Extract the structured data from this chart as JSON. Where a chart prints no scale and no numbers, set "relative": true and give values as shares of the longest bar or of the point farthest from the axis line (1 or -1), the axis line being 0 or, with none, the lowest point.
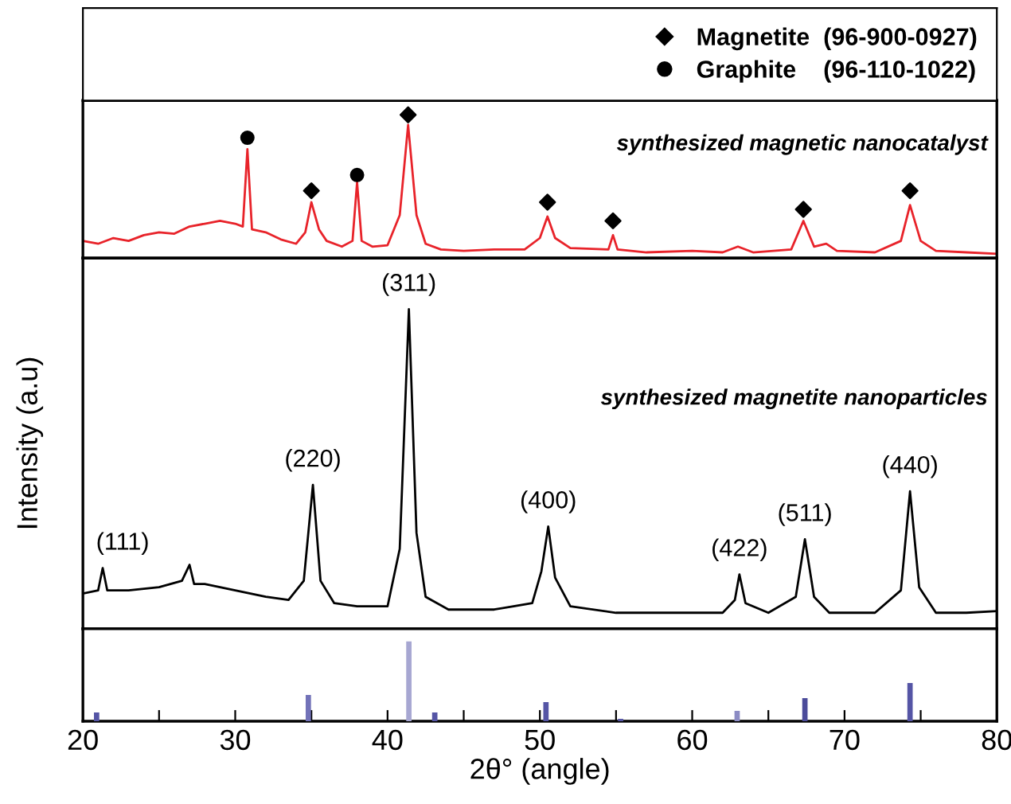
{
  "chart_data": [
    {
      "type": "line",
      "relative": true,
      "xlim": [
        20,
        80
      ],
      "tick_labels": false,
      "legend": "top",
      "annotations": [
        "synthesized magnetic nanocatalyst"
      ],
      "series": [
        {
          "color": "#e8232a",
          "x": [
            20,
            21,
            22,
            23,
            24,
            25,
            26,
            27,
            28,
            29,
            30,
            30.5,
            30.8,
            31.1,
            32,
            33,
            34,
            34.6,
            35.0,
            35.5,
            36,
            37,
            37.7,
            38.0,
            38.3,
            39,
            40,
            40.8,
            41.35,
            41.9,
            42.5,
            43.5,
            45,
            47,
            49,
            50,
            50.5,
            51.0,
            52,
            54.5,
            54.8,
            55.1,
            57,
            60,
            62,
            63,
            64,
            66.5,
            67.3,
            68,
            68.8,
            69.5,
            72,
            73.7,
            74.3,
            75,
            76,
            78,
            80
          ],
          "values": [
            0.12,
            0.1,
            0.14,
            0.12,
            0.16,
            0.18,
            0.17,
            0.22,
            0.24,
            0.26,
            0.24,
            0.22,
            0.76,
            0.2,
            0.18,
            0.13,
            0.1,
            0.18,
            0.39,
            0.2,
            0.12,
            0.08,
            0.12,
            0.53,
            0.12,
            0.08,
            0.09,
            0.3,
            0.93,
            0.3,
            0.1,
            0.06,
            0.05,
            0.06,
            0.06,
            0.14,
            0.29,
            0.14,
            0.07,
            0.06,
            0.16,
            0.06,
            0.04,
            0.05,
            0.04,
            0.08,
            0.04,
            0.06,
            0.26,
            0.08,
            0.1,
            0.05,
            0.04,
            0.12,
            0.37,
            0.12,
            0.05,
            0.04,
            0.03
          ]
        },
        {
          "type": "scatter",
          "marker": "diamond",
          "name": "Magnetite  (96-900-0927)",
          "color": "#000000",
          "x": [
            35.0,
            41.35,
            50.5,
            54.8,
            67.3,
            74.3
          ],
          "values": [
            0.47,
            1.0,
            0.39,
            0.26,
            0.34,
            0.47
          ]
        },
        {
          "type": "scatter",
          "marker": "circle",
          "name": "Graphite    (96-110-1022)",
          "color": "#000000",
          "x": [
            30.8,
            38.0
          ],
          "values": [
            0.84,
            0.58
          ]
        }
      ]
    },
    {
      "type": "line",
      "relative": true,
      "xlim": [
        20,
        80
      ],
      "tick_labels": false,
      "ylabel": "Intensity (a.u)",
      "annotations": [
        "synthesized magnetite nanoparticles",
        {
          "text": "(111)",
          "x": 21.3,
          "y": 0.19
        },
        {
          "text": "(220)",
          "x": 35.1,
          "y": 0.45
        },
        {
          "text": "(311)",
          "x": 41.4,
          "y": 1.0
        },
        {
          "text": "(400)",
          "x": 50.55,
          "y": 0.32
        },
        {
          "text": "(422)",
          "x": 63.1,
          "y": 0.17
        },
        {
          "text": "(511)",
          "x": 67.4,
          "y": 0.28
        },
        {
          "text": "(440)",
          "x": 74.3,
          "y": 0.43
        }
      ],
      "series": [
        {
          "color": "#000000",
          "x": [
            20,
            21,
            21.3,
            21.6,
            23,
            25,
            26.5,
            27,
            27.3,
            28,
            30,
            32,
            33.5,
            34.5,
            35.1,
            35.6,
            36.5,
            38,
            40,
            40.8,
            41.4,
            41.9,
            42.5,
            44,
            47,
            49.5,
            50.1,
            50.55,
            51,
            52,
            55,
            58,
            62,
            62.8,
            63.1,
            63.5,
            65,
            66.8,
            67.4,
            68,
            69,
            72,
            73.7,
            74.3,
            74.9,
            76,
            78,
            80
          ],
          "values": [
            0.11,
            0.12,
            0.19,
            0.12,
            0.12,
            0.13,
            0.15,
            0.2,
            0.14,
            0.14,
            0.12,
            0.1,
            0.09,
            0.15,
            0.45,
            0.15,
            0.08,
            0.07,
            0.07,
            0.25,
            1.0,
            0.3,
            0.1,
            0.06,
            0.06,
            0.08,
            0.18,
            0.32,
            0.16,
            0.07,
            0.05,
            0.05,
            0.05,
            0.09,
            0.17,
            0.08,
            0.05,
            0.1,
            0.28,
            0.1,
            0.05,
            0.05,
            0.12,
            0.43,
            0.13,
            0.05,
            0.05,
            0.055
          ]
        }
      ]
    },
    {
      "type": "bar",
      "relative": true,
      "xlim": [
        20,
        80
      ],
      "tick_labels": "x",
      "xlabel": "2θ° (angle)",
      "xticks": [
        20,
        {
          "value": 25,
          "label": null
        },
        30,
        {
          "value": 35,
          "label": null
        },
        40,
        {
          "value": 45,
          "label": null
        },
        50,
        {
          "value": 55,
          "label": null
        },
        60,
        {
          "value": 65,
          "label": null
        },
        70,
        {
          "value": 75,
          "label": null
        },
        80
      ],
      "x": [
        20.9,
        34.8,
        41.4,
        43.1,
        50.4,
        55.3,
        62.95,
        67.4,
        74.3
      ],
      "values": [
        0.11,
        0.33,
        1.0,
        0.11,
        0.24,
        0.03,
        0.13,
        0.29,
        0.48
      ],
      "colors": [
        "#5555a5",
        "#7272b8",
        "#a7a7d2",
        "#5555a5",
        "#5555a5",
        "#5555a5",
        "#8c8cc4",
        "#4b4b9a",
        "#5555a5"
      ]
    }
  ]
}
